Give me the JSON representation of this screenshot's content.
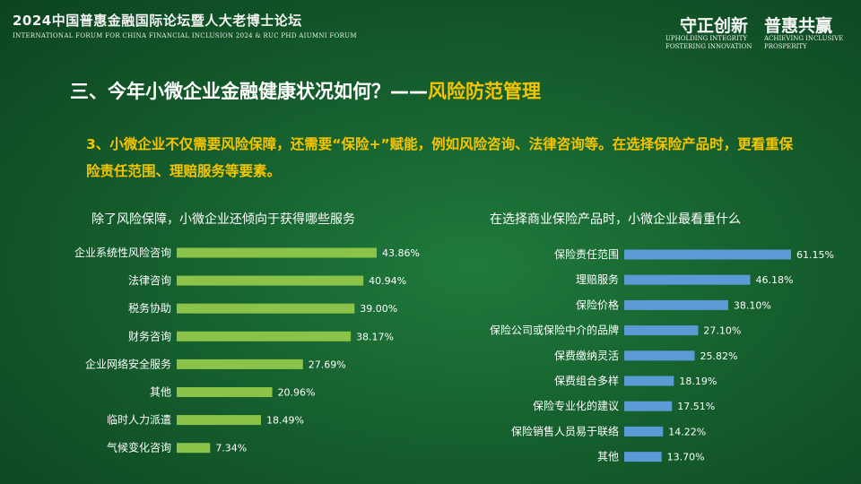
{
  "header": {
    "title": "2024中国普惠金融国际论坛暨人大老博士论坛",
    "subtitle": "INTERNATIONAL FORUM FOR CHINA FINANCIAL INCLUSION 2024 & RUC PHD AIUMNI FORUM",
    "slogan_1": "守正创新",
    "slogan_2": "普惠共赢",
    "slogan_1_en": "UPHOLDING INTEGRITY\nFOSTERING INNOVATION",
    "slogan_2_en": "ACHIEVING INCLUSIVE\nPROSPERITY"
  },
  "section": {
    "title_main": "三、今年小微企业金融健康状况如何？——",
    "title_accent": "风险防范管理"
  },
  "intro_text": "3、小微企业不仅需要风险保障，还需要“保险+”赋能，例如风险咨询、法律咨询等。在选择保险产品时，更看重保险责任范围、理赔服务等要素。",
  "colors": {
    "left_bar": "#8bc34a",
    "right_bar": "#5b9bd5",
    "accent": "#f5c400"
  },
  "chart_data": [
    {
      "type": "bar",
      "orientation": "horizontal",
      "title": "除了风险保障，小微企业还倾向于获得哪些服务",
      "categories": [
        "企业系统性风险咨询",
        "法律咨询",
        "税务协助",
        "财务咨询",
        "企业网络安全服务",
        "其他",
        "临时人力派遣",
        "气候变化咨询"
      ],
      "values": [
        43.86,
        40.94,
        39.0,
        38.17,
        27.69,
        20.96,
        18.49,
        7.34
      ],
      "value_labels": [
        "43.86%",
        "40.94%",
        "39.00%",
        "38.17%",
        "27.69%",
        "20.96%",
        "18.49%",
        "7.34%"
      ],
      "unit": "%",
      "xlim": [
        0,
        43.86
      ]
    },
    {
      "type": "bar",
      "orientation": "horizontal",
      "title": "在选择商业保险产品时，小微企业最看重什么",
      "categories": [
        "保险责任范围",
        "理赔服务",
        "保险价格",
        "保险公司或保险中介的品牌",
        "保费缴纳灵活",
        "保费组合多样",
        "保险专业化的建议",
        "保险销售人员易于联络",
        "其他"
      ],
      "values": [
        61.15,
        46.18,
        38.1,
        27.1,
        25.82,
        18.19,
        17.51,
        14.22,
        13.7
      ],
      "value_labels": [
        "61.15%",
        "46.18%",
        "38.10%",
        "27.10%",
        "25.82%",
        "18.19%",
        "17.51%",
        "14.22%",
        "13.70%"
      ],
      "unit": "%",
      "xlim": [
        0,
        61.15
      ]
    }
  ]
}
